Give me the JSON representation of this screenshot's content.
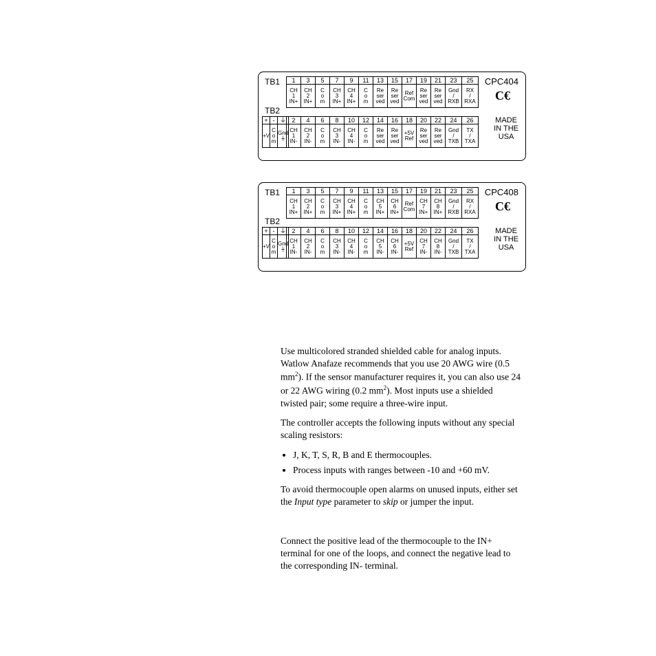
{
  "diagrams": [
    {
      "id": "cpc404",
      "model": "CPC404",
      "tb1_label": "TB1",
      "tb2_label": "TB2",
      "made": "MADE\nIN THE\nUSA",
      "top_nums": [
        "1",
        "3",
        "5",
        "7",
        "9",
        "11",
        "13",
        "15",
        "17",
        "19",
        "21",
        "23",
        "25"
      ],
      "top_labels": [
        "CH\n1\nIN+",
        "CH\n2\nIN+",
        "C\no\nm",
        "CH\n3\nIN+",
        "CH\n4\nIN+",
        "C\no\nm",
        "Re\nser\nved",
        "Re\nser\nved",
        "Ref\nCom",
        "Re\nser\nved",
        "Re\nser\nved",
        "Gnd\n/\nRXB",
        "RX\n/\nRXA"
      ],
      "bot_nums": [
        "2",
        "4",
        "6",
        "8",
        "10",
        "12",
        "14",
        "16",
        "18",
        "20",
        "22",
        "24",
        "26"
      ],
      "bot_labels": [
        "CH\n1\nIN-",
        "CH\n2\nIN-",
        "C\no\nm",
        "CH\n3\nIN-",
        "CH\n4\nIN-",
        "C\no\nm",
        "Re\nser\nved",
        "Re\nser\nved",
        "+5V\nRef",
        "Re\nser\nved",
        "Re\nser\nved",
        "Gnd\n/\nTXB",
        "TX\n/\nTXA"
      ],
      "left_top": [
        "+",
        "-",
        "⏚"
      ],
      "left_bot": [
        "+V",
        "C\no\nm",
        "Gnd\n⏚"
      ]
    },
    {
      "id": "cpc408",
      "model": "CPC408",
      "tb1_label": "TB1",
      "tb2_label": "TB2",
      "made": "MADE\nIN THE\nUSA",
      "top_nums": [
        "1",
        "3",
        "5",
        "7",
        "9",
        "11",
        "13",
        "15",
        "17",
        "19",
        "21",
        "23",
        "25"
      ],
      "top_labels": [
        "CH\n1\nIN+",
        "CH\n2\nIN+",
        "C\no\nm",
        "CH\n3\nIN+",
        "CH\n4\nIN+",
        "C\no\nm",
        "CH\n5\nIN+",
        "CH\n6\nIN+",
        "Ref\nCom",
        "CH\n7\nIN+",
        "CH\n8\nIN+",
        "Gnd\n/\nRXB",
        "RX\n/\nRXA"
      ],
      "bot_nums": [
        "2",
        "4",
        "6",
        "8",
        "10",
        "12",
        "14",
        "16",
        "18",
        "20",
        "22",
        "24",
        "26"
      ],
      "bot_labels": [
        "CH\n1\nIN-",
        "CH\n2\nIN-",
        "C\no\nm",
        "CH\n3\nIN-",
        "CH\n4\nIN-",
        "C\no\nm",
        "CH\n5\nIN-",
        "CH\n6\nIN-",
        "+5V\nRef",
        "CH\n7\nIN-",
        "CH\n8\nIN-",
        "Gnd\n/\nTXB",
        "TX\n/\nTXA"
      ],
      "left_top": [
        "+",
        "-",
        "⏚"
      ],
      "left_bot": [
        "+V",
        "C\no\nm",
        "Gnd\n⏚"
      ]
    }
  ],
  "text": {
    "p1a": "Use multicolored stranded shielded cable for analog inputs. Watlow Anafaze recommends that you use 20 AWG wire (0.5 mm",
    "p1b": "). If the sensor manufacturer requires it, you can also use 24 or 22 AWG wiring (0.2 mm",
    "p1c": "). Most inputs use a shielded twisted pair; some require a three-wire input.",
    "p2": "The controller accepts the following inputs without any special scaling resistors:",
    "li1": "J, K, T, S, R, B and E thermocouples.",
    "li2": "Process inputs with ranges between -10 and +60 mV.",
    "p3a": "To avoid thermocouple open alarms on unused inputs, either set the ",
    "p3b": "Input type",
    "p3c": " parameter to ",
    "p3d": "skip",
    "p3e": " or jumper the input.",
    "p4": "Connect the positive lead of the thermocouple to the IN+ terminal for one of the loops, and connect the negative lead to the corresponding IN- terminal."
  }
}
